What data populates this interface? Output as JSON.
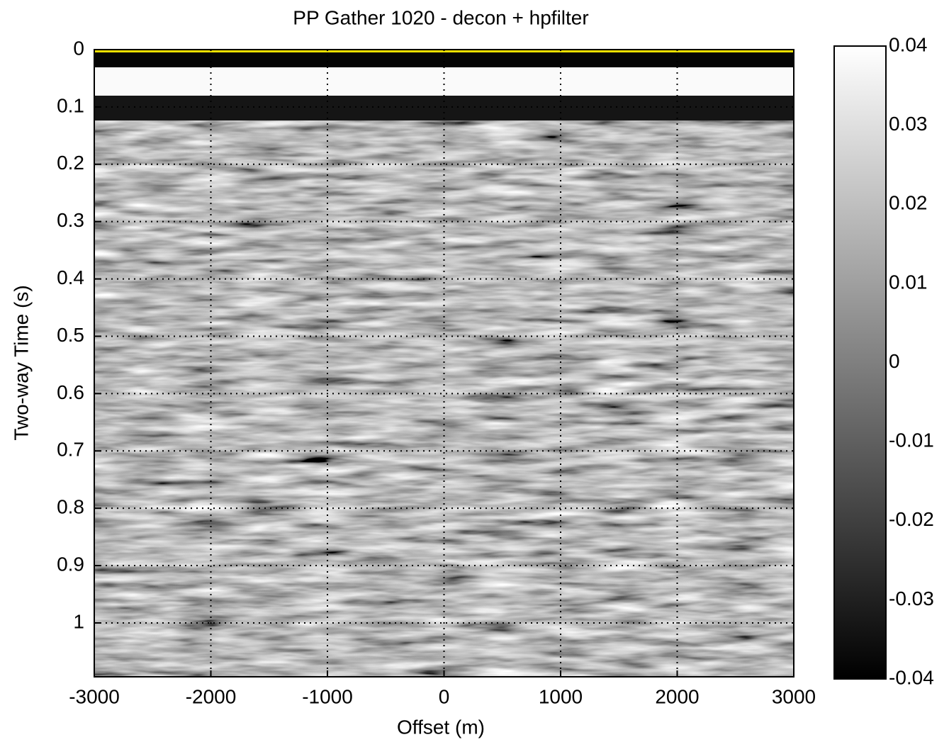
{
  "chart_data": {
    "type": "heatmap",
    "title": "PP Gather 1020 - decon + hpfilter",
    "xlabel": "Offset (m)",
    "ylabel": "Two-way Time (s)",
    "xlim": [
      -3000,
      3000
    ],
    "xticks": [
      -3000,
      -2000,
      -1000,
      0,
      1000,
      2000,
      3000
    ],
    "ylim": [
      0,
      1.094
    ],
    "yticks": [
      0,
      0.1,
      0.2,
      0.3,
      0.4,
      0.5,
      0.6,
      0.7,
      0.8,
      0.9,
      1
    ],
    "y_reversed": true,
    "grid": true,
    "colormap": "gray",
    "colorbar": {
      "lim": [
        -0.04,
        0.04
      ],
      "ticks": [
        -0.04,
        -0.03,
        -0.02,
        -0.01,
        0,
        0.01,
        0.02,
        0.03,
        0.04
      ]
    }
  }
}
